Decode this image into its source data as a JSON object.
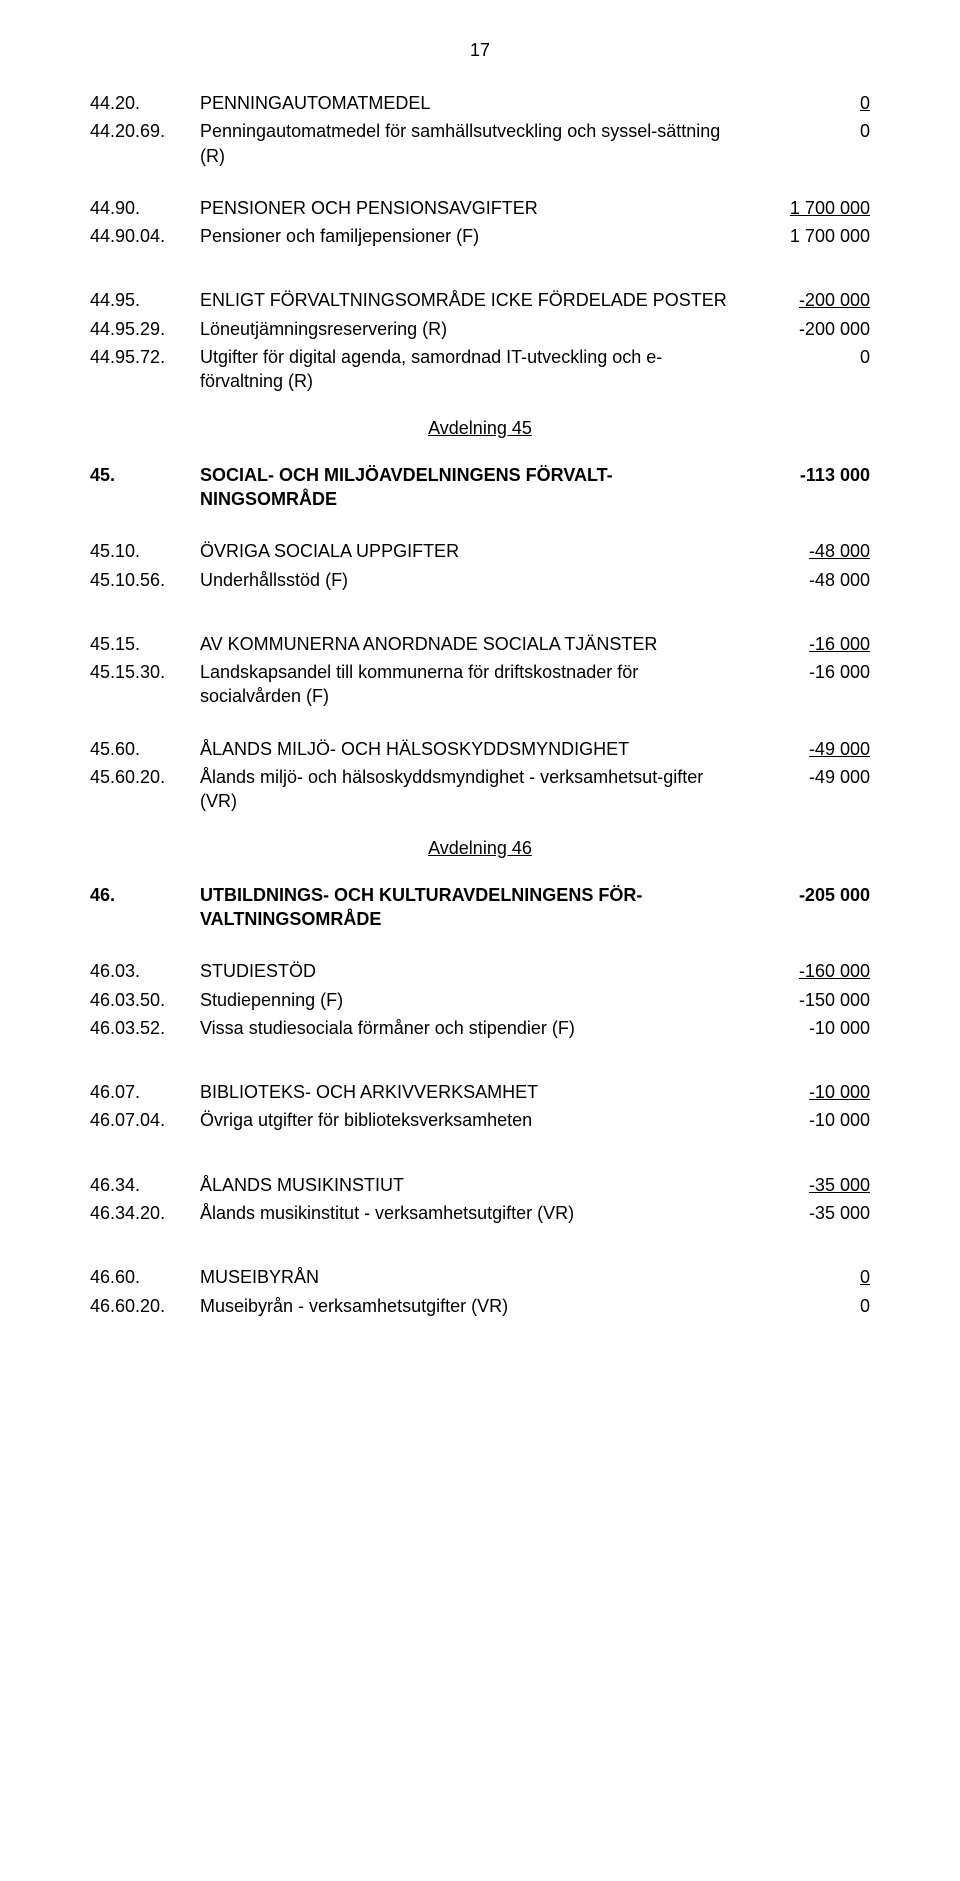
{
  "page_number": "17",
  "rows": [
    {
      "code": "44.20.",
      "label": "PENNINGAUTOMATMEDEL",
      "value": "0",
      "underlineValue": true
    },
    {
      "code": "44.20.69.",
      "label": "Penningautomatmedel för samhällsutveckling och syssel-sättning (R)",
      "value": "0"
    },
    {
      "spacer": "md"
    },
    {
      "code": "44.90.",
      "label": "PENSIONER OCH PENSIONSAVGIFTER",
      "value": "1 700 000",
      "underlineValue": true
    },
    {
      "code": "44.90.04.",
      "label": "Pensioner och familjepensioner (F)",
      "value": "1 700 000"
    },
    {
      "spacer": "lg"
    },
    {
      "code": "44.95.",
      "label": "ENLIGT FÖRVALTNINGSOMRÅDE ICKE FÖRDELADE POSTER",
      "value": "-200 000",
      "underlineValue": true
    },
    {
      "code": "44.95.29.",
      "label": "Löneutjämningsreservering (R)",
      "value": "-200 000"
    },
    {
      "code": "44.95.72.",
      "label": "Utgifter för digital agenda, samordnad IT-utveckling och e-förvaltning (R)",
      "value": "0"
    },
    {
      "avdelning": "Avdelning 45"
    },
    {
      "code": "45.",
      "label": "SOCIAL- OCH MILJÖAVDELNINGENS FÖRVALT-NINGSOMRÅDE",
      "value": "-113 000",
      "bold": true
    },
    {
      "spacer": "md"
    },
    {
      "code": "45.10.",
      "label": "ÖVRIGA SOCIALA UPPGIFTER",
      "value": "-48 000",
      "underlineValue": true
    },
    {
      "code": "45.10.56.",
      "label": "Underhållsstöd (F)",
      "value": "-48 000"
    },
    {
      "spacer": "lg"
    },
    {
      "code": "45.15.",
      "label": "AV KOMMUNERNA ANORDNADE SOCIALA TJÄNSTER",
      "value": "-16 000",
      "underlineValue": true
    },
    {
      "code": "45.15.30.",
      "label": "Landskapsandel till kommunerna för driftskostnader för socialvården (F)",
      "value": "-16 000"
    },
    {
      "spacer": "md"
    },
    {
      "code": "45.60.",
      "label": "ÅLANDS MILJÖ- OCH HÄLSOSKYDDSMYNDIGHET",
      "value": "-49 000",
      "underlineValue": true
    },
    {
      "code": "45.60.20.",
      "label": "Ålands miljö- och hälsoskyddsmyndighet - verksamhetsut-gifter (VR)",
      "value": "-49 000"
    },
    {
      "avdelning": "Avdelning 46"
    },
    {
      "code": "46.",
      "label": "UTBILDNINGS- OCH KULTURAVDELNINGENS FÖR-VALTNINGSOMRÅDE",
      "value": "-205 000",
      "bold": true
    },
    {
      "spacer": "md"
    },
    {
      "code": "46.03.",
      "label": "STUDIESTÖD",
      "value": "-160 000",
      "underlineValue": true
    },
    {
      "code": "46.03.50.",
      "label": "Studiepenning (F)",
      "value": "-150 000"
    },
    {
      "code": "46.03.52.",
      "label": "Vissa studiesociala förmåner och stipendier (F)",
      "value": "-10 000"
    },
    {
      "spacer": "lg"
    },
    {
      "code": "46.07.",
      "label": "BIBLIOTEKS- OCH ARKIVVERKSAMHET",
      "value": "-10 000",
      "underlineValue": true
    },
    {
      "code": "46.07.04.",
      "label": "Övriga utgifter för biblioteksverksamheten",
      "value": "-10 000"
    },
    {
      "spacer": "lg"
    },
    {
      "code": "46.34.",
      "label": "ÅLANDS MUSIKINSTIUT",
      "value": "-35 000",
      "underlineValue": true
    },
    {
      "code": "46.34.20.",
      "label": "Ålands musikinstitut - verksamhetsutgifter (VR)",
      "value": "-35 000"
    },
    {
      "spacer": "lg"
    },
    {
      "code": "46.60.",
      "label": "MUSEIBYRÅN",
      "value": "0",
      "underlineValue": true
    },
    {
      "code": "46.60.20.",
      "label": "Museibyrån - verksamhetsutgifter (VR)",
      "value": "0"
    }
  ]
}
